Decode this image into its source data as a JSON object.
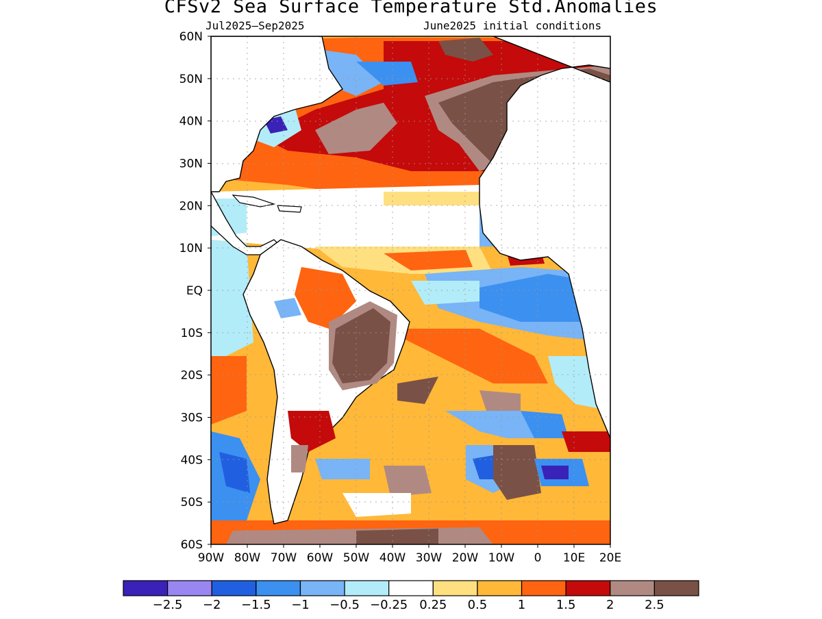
{
  "title": "CFSv2 Sea Surface Temperature Std.Anomalies",
  "period": "Jul2025—Sep2025",
  "initial_conditions": "June2025 initial conditions",
  "lat_labels": [
    "60N",
    "50N",
    "40N",
    "30N",
    "20N",
    "10N",
    "EQ",
    "10S",
    "20S",
    "30S",
    "40S",
    "50S",
    "60S"
  ],
  "lon_labels": [
    "90W",
    "80W",
    "70W",
    "60W",
    "50W",
    "40W",
    "30W",
    "20W",
    "10W",
    "0",
    "10E",
    "20E"
  ],
  "colorbar": {
    "colors": [
      "#3a22b8",
      "#9a86f0",
      "#2060e0",
      "#3c90f0",
      "#78b4f6",
      "#b2ecf8",
      "#ffffff",
      "#ffe080",
      "#ffb838",
      "#ff6410",
      "#c40a0a",
      "#b08a82",
      "#7a5146"
    ],
    "labels": [
      "−2.5",
      "−2",
      "−1.5",
      "−1",
      "−0.5",
      "−0.25",
      "0.25",
      "0.5",
      "1",
      "1.5",
      "2",
      "2.5"
    ]
  },
  "colors": {
    "land": "#ffffff",
    "coast": "#000000",
    "grid": "#9a9a9a"
  }
}
